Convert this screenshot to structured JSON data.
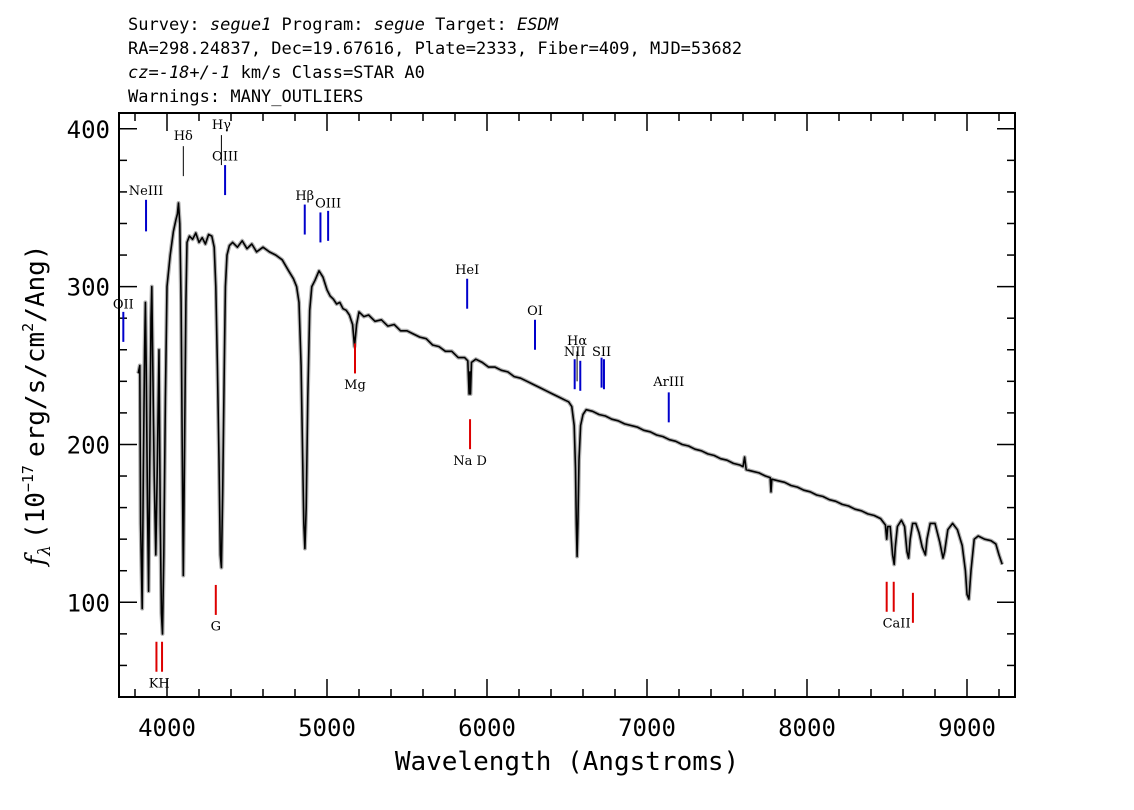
{
  "header": {
    "line1": {
      "survey_label": "Survey: ",
      "survey": "segue1",
      "program_label": " Program: ",
      "program": "segue",
      "target_label": " Target: ",
      "target": "ESDM"
    },
    "line2": "RA=298.24837, Dec=19.67616, Plate=2333, Fiber=409, MJD=53682",
    "line3": {
      "cz": "cz=-18+/-1",
      "rest": " km/s Class=STAR A0"
    },
    "line4": "Warnings: MANY_OUTLIERS"
  },
  "colors": {
    "spectrum": "#000000",
    "error_band": "#b0b0b0",
    "emission": "#0000cc",
    "absorption": "#dd0000"
  },
  "chart_data": {
    "type": "line",
    "xlabel": "Wavelength (Angstroms)",
    "ylabel": "f_λ (10^-17 erg/s/cm^2/Ang)",
    "ylabel_parts": {
      "f": "f",
      "lambda": "λ",
      "pre": "(10",
      "exp1": "−17",
      "mid": "erg/s/cm",
      "exp2": "2",
      "post": "/Ang)"
    },
    "xlim": [
      3700,
      9300
    ],
    "ylim": [
      40,
      410
    ],
    "x_ticks": [
      4000,
      5000,
      6000,
      7000,
      8000,
      9000
    ],
    "x_tick_labels": [
      "4000",
      "5000",
      "6000",
      "7000",
      "8000",
      "9000"
    ],
    "y_ticks": [
      100,
      200,
      300,
      400
    ],
    "y_tick_labels": [
      "100",
      "200",
      "300",
      "400"
    ],
    "x_minor_step": 200,
    "y_minor_step": 20,
    "series": [
      {
        "points": [
          [
            3820,
            245
          ],
          [
            3830,
            250
          ],
          [
            3835,
            150
          ],
          [
            3845,
            96
          ],
          [
            3852,
            180
          ],
          [
            3860,
            260
          ],
          [
            3865,
            290
          ],
          [
            3870,
            250
          ],
          [
            3878,
            160
          ],
          [
            3885,
            107
          ],
          [
            3893,
            200
          ],
          [
            3900,
            280
          ],
          [
            3905,
            300
          ],
          [
            3910,
            260
          ],
          [
            3920,
            180
          ],
          [
            3930,
            130
          ],
          [
            3940,
            190
          ],
          [
            3950,
            260
          ],
          [
            3958,
            150
          ],
          [
            3965,
            93
          ],
          [
            3972,
            80
          ],
          [
            3980,
            130
          ],
          [
            3990,
            230
          ],
          [
            4000,
            300
          ],
          [
            4020,
            320
          ],
          [
            4040,
            335
          ],
          [
            4055,
            342
          ],
          [
            4065,
            346
          ],
          [
            4072,
            353
          ],
          [
            4080,
            340
          ],
          [
            4088,
            290
          ],
          [
            4095,
            200
          ],
          [
            4102,
            117
          ],
          [
            4110,
            200
          ],
          [
            4118,
            290
          ],
          [
            4125,
            328
          ],
          [
            4140,
            332
          ],
          [
            4160,
            330
          ],
          [
            4180,
            334
          ],
          [
            4200,
            328
          ],
          [
            4220,
            331
          ],
          [
            4240,
            327
          ],
          [
            4260,
            333
          ],
          [
            4280,
            332
          ],
          [
            4295,
            325
          ],
          [
            4305,
            300
          ],
          [
            4315,
            250
          ],
          [
            4325,
            190
          ],
          [
            4333,
            130
          ],
          [
            4340,
            122
          ],
          [
            4348,
            170
          ],
          [
            4358,
            250
          ],
          [
            4365,
            300
          ],
          [
            4375,
            320
          ],
          [
            4390,
            326
          ],
          [
            4410,
            328
          ],
          [
            4440,
            325
          ],
          [
            4470,
            329
          ],
          [
            4500,
            324
          ],
          [
            4530,
            327
          ],
          [
            4560,
            322
          ],
          [
            4600,
            325
          ],
          [
            4640,
            322
          ],
          [
            4680,
            320
          ],
          [
            4720,
            317
          ],
          [
            4760,
            310
          ],
          [
            4790,
            305
          ],
          [
            4810,
            300
          ],
          [
            4825,
            290
          ],
          [
            4838,
            250
          ],
          [
            4848,
            190
          ],
          [
            4855,
            150
          ],
          [
            4862,
            134
          ],
          [
            4870,
            160
          ],
          [
            4880,
            230
          ],
          [
            4892,
            285
          ],
          [
            4905,
            300
          ],
          [
            4925,
            304
          ],
          [
            4950,
            310
          ],
          [
            4975,
            306
          ],
          [
            5000,
            298
          ],
          [
            5020,
            294
          ],
          [
            5040,
            292
          ],
          [
            5060,
            289
          ],
          [
            5080,
            290
          ],
          [
            5100,
            286
          ],
          [
            5120,
            285
          ],
          [
            5140,
            282
          ],
          [
            5160,
            276
          ],
          [
            5172,
            262
          ],
          [
            5185,
            276
          ],
          [
            5200,
            284
          ],
          [
            5230,
            281
          ],
          [
            5260,
            282
          ],
          [
            5300,
            278
          ],
          [
            5340,
            279
          ],
          [
            5380,
            275
          ],
          [
            5420,
            276
          ],
          [
            5460,
            272
          ],
          [
            5500,
            272
          ],
          [
            5540,
            270
          ],
          [
            5580,
            268
          ],
          [
            5620,
            267
          ],
          [
            5660,
            263
          ],
          [
            5700,
            262
          ],
          [
            5740,
            259
          ],
          [
            5780,
            259
          ],
          [
            5820,
            255
          ],
          [
            5860,
            255
          ],
          [
            5880,
            253
          ],
          [
            5888,
            232
          ],
          [
            5893,
            246
          ],
          [
            5897,
            232
          ],
          [
            5903,
            252
          ],
          [
            5930,
            254
          ],
          [
            5970,
            252
          ],
          [
            6010,
            249
          ],
          [
            6050,
            249
          ],
          [
            6090,
            247
          ],
          [
            6130,
            246
          ],
          [
            6170,
            243
          ],
          [
            6210,
            242
          ],
          [
            6250,
            240
          ],
          [
            6290,
            238
          ],
          [
            6330,
            236
          ],
          [
            6370,
            234
          ],
          [
            6410,
            232
          ],
          [
            6450,
            230
          ],
          [
            6490,
            228
          ],
          [
            6510,
            227
          ],
          [
            6530,
            224
          ],
          [
            6545,
            212
          ],
          [
            6553,
            185
          ],
          [
            6558,
            150
          ],
          [
            6563,
            129
          ],
          [
            6568,
            150
          ],
          [
            6575,
            190
          ],
          [
            6585,
            212
          ],
          [
            6600,
            219
          ],
          [
            6620,
            222
          ],
          [
            6660,
            221
          ],
          [
            6700,
            219
          ],
          [
            6740,
            218
          ],
          [
            6780,
            216
          ],
          [
            6820,
            215
          ],
          [
            6860,
            213
          ],
          [
            6900,
            212
          ],
          [
            6940,
            211
          ],
          [
            6980,
            209
          ],
          [
            7020,
            208
          ],
          [
            7060,
            206
          ],
          [
            7100,
            205
          ],
          [
            7140,
            203
          ],
          [
            7180,
            202
          ],
          [
            7220,
            200
          ],
          [
            7260,
            199
          ],
          [
            7300,
            197
          ],
          [
            7340,
            196
          ],
          [
            7380,
            194
          ],
          [
            7420,
            193
          ],
          [
            7460,
            191
          ],
          [
            7500,
            190
          ],
          [
            7540,
            188
          ],
          [
            7580,
            187
          ],
          [
            7600,
            186
          ],
          [
            7610,
            192
          ],
          [
            7620,
            184
          ],
          [
            7660,
            183
          ],
          [
            7700,
            182
          ],
          [
            7740,
            180
          ],
          [
            7770,
            179
          ],
          [
            7775,
            170
          ],
          [
            7780,
            178
          ],
          [
            7820,
            177
          ],
          [
            7860,
            176
          ],
          [
            7900,
            174
          ],
          [
            7940,
            173
          ],
          [
            7980,
            171
          ],
          [
            8020,
            170
          ],
          [
            8060,
            168
          ],
          [
            8100,
            167
          ],
          [
            8140,
            165
          ],
          [
            8180,
            164
          ],
          [
            8220,
            162
          ],
          [
            8260,
            161
          ],
          [
            8300,
            159
          ],
          [
            8340,
            158
          ],
          [
            8380,
            156
          ],
          [
            8420,
            155
          ],
          [
            8460,
            153
          ],
          [
            8490,
            149
          ],
          [
            8498,
            140
          ],
          [
            8505,
            148
          ],
          [
            8520,
            148
          ],
          [
            8535,
            130
          ],
          [
            8545,
            124
          ],
          [
            8552,
            135
          ],
          [
            8565,
            148
          ],
          [
            8590,
            152
          ],
          [
            8610,
            148
          ],
          [
            8625,
            132
          ],
          [
            8635,
            128
          ],
          [
            8645,
            140
          ],
          [
            8660,
            150
          ],
          [
            8680,
            150
          ],
          [
            8700,
            144
          ],
          [
            8720,
            135
          ],
          [
            8740,
            130
          ],
          [
            8750,
            140
          ],
          [
            8770,
            150
          ],
          [
            8800,
            150
          ],
          [
            8830,
            138
          ],
          [
            8850,
            128
          ],
          [
            8860,
            132
          ],
          [
            8880,
            146
          ],
          [
            8910,
            150
          ],
          [
            8940,
            146
          ],
          [
            8970,
            136
          ],
          [
            8990,
            120
          ],
          [
            9000,
            105
          ],
          [
            9012,
            102
          ],
          [
            9025,
            120
          ],
          [
            9045,
            140
          ],
          [
            9070,
            142
          ],
          [
            9110,
            140
          ],
          [
            9150,
            139
          ],
          [
            9180,
            137
          ],
          [
            9200,
            130
          ],
          [
            9220,
            124
          ]
        ]
      }
    ],
    "lines": [
      {
        "label": "NeIII",
        "x": 3869,
        "y1": 335,
        "y2": 355,
        "label_y": 358,
        "kind": "emission"
      },
      {
        "label": "OII",
        "x": 3727,
        "y1": 265,
        "y2": 284,
        "label_y": 286,
        "kind": "emission"
      },
      {
        "label": "Hδ",
        "x": 4102,
        "y1": 370,
        "y2": 389,
        "label_y": 393,
        "kind": "other"
      },
      {
        "label": "Hγ",
        "x": 4340,
        "y1": 377,
        "y2": 396,
        "label_y": 400,
        "kind": "other"
      },
      {
        "label": "OIII",
        "x": 4363,
        "y1": 358,
        "y2": 377,
        "label_y": 380,
        "kind": "emission"
      },
      {
        "label": "Hβ",
        "x": 4861,
        "y1": 333,
        "y2": 352,
        "label_y": 355,
        "kind": "emission"
      },
      {
        "label": "OIII",
        "x": 4959,
        "y1": 328,
        "y2": 347,
        "label_y": "",
        "kind": "emission"
      },
      {
        "label": "OIII",
        "x": 5007,
        "y1": 329,
        "y2": 348,
        "label_y": 350,
        "kind": "emission"
      },
      {
        "label": "HeI",
        "x": 5876,
        "y1": 286,
        "y2": 305,
        "label_y": 308,
        "kind": "emission"
      },
      {
        "label": "OI",
        "x": 6300,
        "y1": 260,
        "y2": 279,
        "label_y": 282,
        "kind": "emission"
      },
      {
        "label": "NII",
        "x": 6548,
        "y1": 235,
        "y2": 254,
        "label_y": 256,
        "kind": "emission"
      },
      {
        "label": "Hα",
        "x": 6563,
        "y1": 240,
        "y2": 259,
        "label_y": 263,
        "kind": "other"
      },
      {
        "label": "NII",
        "x": 6583,
        "y1": 234,
        "y2": 253,
        "label_y": "",
        "kind": "emission"
      },
      {
        "label": "SII",
        "x": 6716,
        "y1": 236,
        "y2": 255,
        "label_y": 256,
        "kind": "emission"
      },
      {
        "label": "SII",
        "x": 6731,
        "y1": 235,
        "y2": 254,
        "label_y": "",
        "kind": "emission"
      },
      {
        "label": "ArIII",
        "x": 7136,
        "y1": 214,
        "y2": 233,
        "label_y": 237,
        "kind": "emission"
      },
      {
        "label": "K",
        "x": 3934,
        "y1": 56,
        "y2": 75,
        "label_y": 46,
        "kind": "absorption"
      },
      {
        "label": "H",
        "x": 3969,
        "y1": 56,
        "y2": 75,
        "label_y": 46,
        "kind": "absorption"
      },
      {
        "label": "G",
        "x": 4305,
        "y1": 92,
        "y2": 111,
        "label_y": 82,
        "kind": "absorption"
      },
      {
        "label": "Mg",
        "x": 5175,
        "y1": 245,
        "y2": 264,
        "label_y": 235,
        "kind": "absorption"
      },
      {
        "label": "Na D",
        "x": 5894,
        "y1": 197,
        "y2": 216,
        "label_y": 187,
        "kind": "absorption"
      },
      {
        "label": "CaII",
        "x": 8498,
        "y1": 94,
        "y2": 113,
        "label_y": "",
        "kind": "absorption"
      },
      {
        "label": "",
        "x": 8542,
        "y1": 94,
        "y2": 113,
        "label_y": 84,
        "kind": "absorption"
      },
      {
        "label": "",
        "x": 8662,
        "y1": 87,
        "y2": 106,
        "label_y": "",
        "kind": "absorption"
      }
    ]
  }
}
